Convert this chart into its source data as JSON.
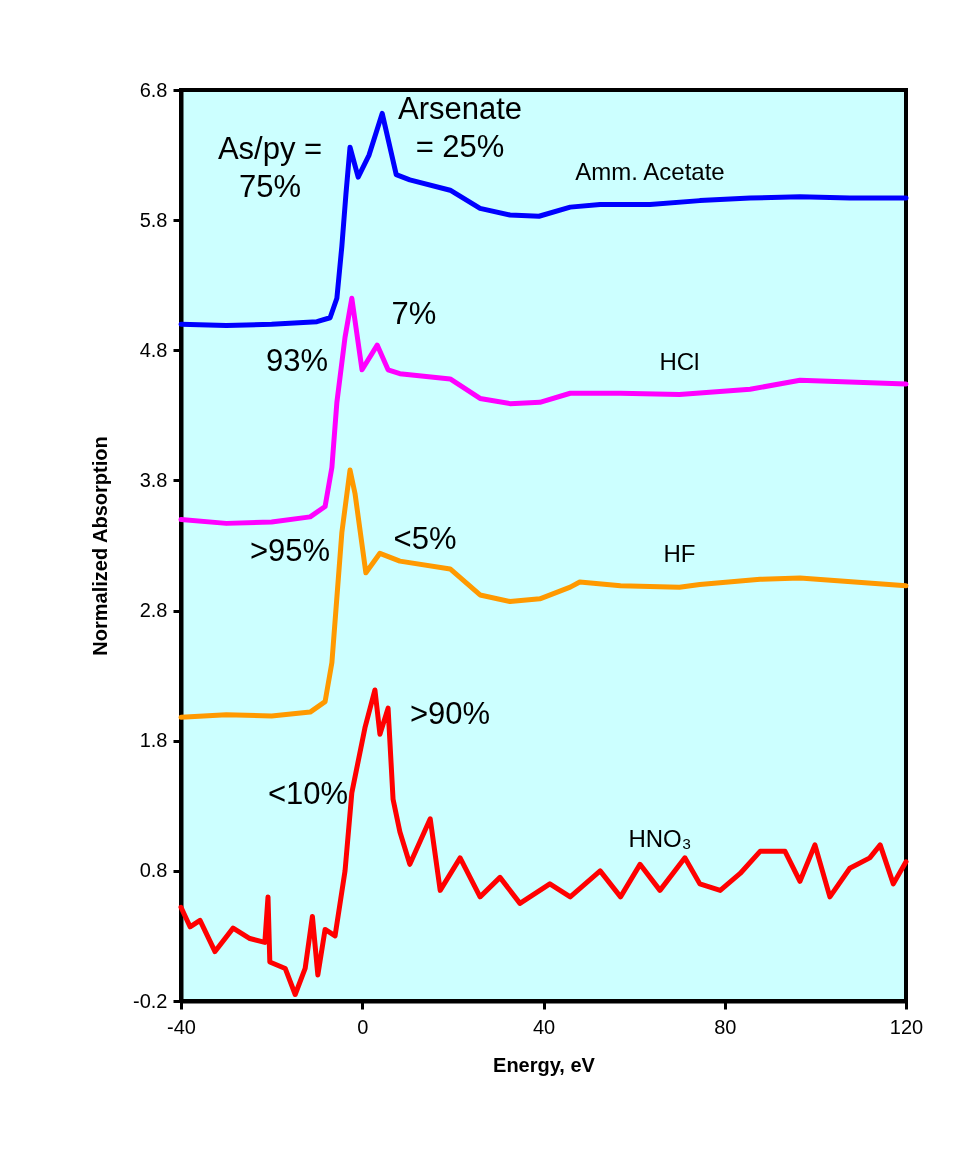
{
  "chart_data": {
    "type": "line",
    "xlabel": "Energy, eV",
    "ylabel": "Normalized Absorption",
    "xlim": [
      -40,
      120
    ],
    "xticks": [
      -40,
      0,
      40,
      80,
      120
    ],
    "ylim": [
      -0.2,
      6.8
    ],
    "yticks": [
      -0.2,
      0.8,
      1.8,
      2.8,
      3.8,
      4.8,
      5.8,
      6.8
    ],
    "grid": false,
    "marker": "none",
    "line_style": "solid",
    "series": [
      {
        "name": "Amm. Acetate",
        "color": "#0000ff",
        "x": [
          -40,
          -30,
          -20,
          -10,
          -7.1,
          -5.6,
          -4.5,
          -3.6,
          -2.7,
          -0.9,
          1.5,
          4.4,
          7.5,
          10.5,
          19.4,
          26,
          32.6,
          39,
          45.9,
          52.5,
          63.5,
          74.5,
          85.6,
          96.6,
          107.6,
          120
        ],
        "values": [
          5.0,
          4.99,
          5.0,
          5.02,
          5.05,
          5.2,
          5.6,
          6.0,
          6.36,
          6.13,
          6.3,
          6.62,
          6.15,
          6.11,
          6.03,
          5.89,
          5.84,
          5.83,
          5.9,
          5.92,
          5.92,
          5.95,
          5.97,
          5.98,
          5.97,
          5.97
        ]
      },
      {
        "name": "HCl",
        "color": "#ff00ff",
        "x": [
          -40,
          -30,
          -20,
          -11.5,
          -8.2,
          -6.7,
          -5.6,
          -3.8,
          -2.3,
          -0.05,
          3.3,
          5.7,
          8.3,
          19.4,
          26,
          32.6,
          39.2,
          45.9,
          57,
          70,
          85.6,
          96.6,
          120
        ],
        "values": [
          3.5,
          3.47,
          3.48,
          3.52,
          3.6,
          3.9,
          4.4,
          4.9,
          5.2,
          4.65,
          4.84,
          4.65,
          4.62,
          4.58,
          4.43,
          4.39,
          4.4,
          4.47,
          4.47,
          4.46,
          4.5,
          4.57,
          4.54
        ]
      },
      {
        "name": "HF",
        "color": "#ff9900",
        "x": [
          -40,
          -30,
          -20,
          -11.5,
          -8.2,
          -6.7,
          -5.6,
          -4.5,
          -2.7,
          -1.6,
          0.8,
          3.9,
          8.3,
          19.4,
          26,
          32.6,
          39.2,
          45.9,
          48,
          57,
          70,
          74.5,
          87.8,
          96.6,
          120
        ],
        "values": [
          1.98,
          2.0,
          1.99,
          2.02,
          2.1,
          2.4,
          2.9,
          3.4,
          3.88,
          3.7,
          3.09,
          3.24,
          3.18,
          3.12,
          2.92,
          2.87,
          2.89,
          2.98,
          3.02,
          2.99,
          2.98,
          3.0,
          3.04,
          3.05,
          2.99
        ]
      },
      {
        "name": "HNO₃",
        "color": "#ff0000",
        "x": [
          -40,
          -38,
          -35.8,
          -32.5,
          -28.5,
          -24.8,
          -21.5,
          -20.8,
          -20.4,
          -17,
          -14.8,
          -12.6,
          -11,
          -9.8,
          -8.2,
          -6,
          -3.8,
          -2.3,
          0.6,
          2.8,
          3.9,
          5.7,
          6.8,
          8.3,
          10.5,
          15,
          17.2,
          21.6,
          26,
          30.4,
          34.8,
          41.4,
          45.9,
          52.5,
          57,
          61.3,
          65.7,
          71.2,
          74.5,
          79,
          83.4,
          87.8,
          93.3,
          96.6,
          99.9,
          103.2,
          107.6,
          112,
          114.3,
          117.2,
          120
        ],
        "values": [
          0.52,
          0.37,
          0.42,
          0.18,
          0.36,
          0.28,
          0.25,
          0.6,
          0.1,
          0.05,
          -0.15,
          0.05,
          0.45,
          0.0,
          0.35,
          0.3,
          0.8,
          1.4,
          1.9,
          2.19,
          1.85,
          2.05,
          1.35,
          1.1,
          0.85,
          1.2,
          0.65,
          0.9,
          0.6,
          0.75,
          0.55,
          0.7,
          0.6,
          0.8,
          0.6,
          0.85,
          0.65,
          0.9,
          0.7,
          0.65,
          0.78,
          0.95,
          0.95,
          0.72,
          1.0,
          0.6,
          0.82,
          0.9,
          1.0,
          0.7,
          0.87
        ]
      }
    ],
    "annotations": [
      "As/py =\n75%",
      "Arsenate\n= 25%",
      "93%",
      "7%",
      ">95%",
      "<5%",
      ">90%",
      "<10%"
    ]
  }
}
